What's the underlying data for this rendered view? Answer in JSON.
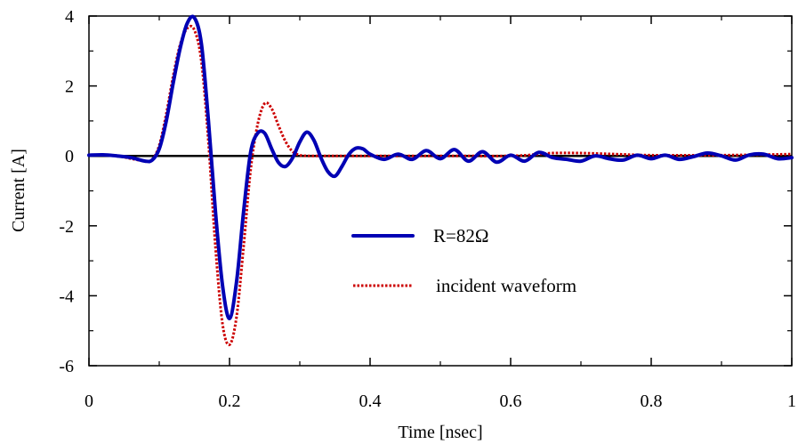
{
  "chart_data": {
    "type": "line",
    "title": "",
    "xlabel": "Time [nsec]",
    "ylabel": "Current [A]",
    "xlim": [
      0,
      1
    ],
    "ylim": [
      -6,
      4
    ],
    "x_ticks": [
      0,
      0.2,
      0.4,
      0.6,
      0.8,
      1
    ],
    "x_tick_labels": [
      "0",
      "0.2",
      "0.4",
      "0.6",
      "0.8",
      "1"
    ],
    "y_ticks": [
      -6,
      -4,
      -2,
      0,
      2,
      4
    ],
    "y_tick_labels": [
      "-6",
      "-4",
      "-2",
      "0",
      "2",
      "4"
    ],
    "grid": false,
    "legend_position": "center-right",
    "zero_line": true,
    "series": [
      {
        "name": "R=82Ω",
        "color": "#0000b4",
        "style": "solid",
        "x": [
          0,
          0.02,
          0.04,
          0.06,
          0.08,
          0.09,
          0.1,
          0.11,
          0.12,
          0.13,
          0.14,
          0.15,
          0.16,
          0.17,
          0.18,
          0.19,
          0.2,
          0.21,
          0.22,
          0.23,
          0.24,
          0.25,
          0.26,
          0.27,
          0.28,
          0.29,
          0.3,
          0.31,
          0.32,
          0.33,
          0.34,
          0.35,
          0.36,
          0.37,
          0.38,
          0.39,
          0.4,
          0.42,
          0.44,
          0.46,
          0.48,
          0.5,
          0.52,
          0.54,
          0.56,
          0.58,
          0.6,
          0.62,
          0.64,
          0.66,
          0.68,
          0.7,
          0.72,
          0.74,
          0.76,
          0.78,
          0.8,
          0.82,
          0.84,
          0.86,
          0.88,
          0.9,
          0.92,
          0.94,
          0.96,
          0.98,
          1.0
        ],
        "y": [
          0.02,
          0.03,
          0.0,
          -0.05,
          -0.15,
          -0.12,
          0.2,
          1.0,
          2.1,
          3.1,
          3.8,
          3.95,
          3.2,
          1.0,
          -1.6,
          -3.7,
          -4.65,
          -3.6,
          -1.6,
          0.1,
          0.65,
          0.65,
          0.2,
          -0.2,
          -0.3,
          -0.05,
          0.4,
          0.68,
          0.45,
          -0.05,
          -0.45,
          -0.58,
          -0.3,
          0.05,
          0.22,
          0.2,
          0.05,
          -0.1,
          0.05,
          -0.1,
          0.15,
          -0.08,
          0.18,
          -0.15,
          0.12,
          -0.18,
          0.02,
          -0.15,
          0.1,
          -0.05,
          -0.1,
          -0.15,
          0.0,
          -0.08,
          -0.12,
          0.02,
          -0.08,
          0.02,
          -0.1,
          -0.02,
          0.08,
          0.0,
          -0.12,
          0.03,
          0.05,
          -0.08,
          -0.05
        ]
      },
      {
        "name": "incident waveform",
        "color": "#cc0000",
        "style": "dotted",
        "x": [
          0,
          0.02,
          0.04,
          0.06,
          0.08,
          0.09,
          0.1,
          0.11,
          0.12,
          0.13,
          0.14,
          0.15,
          0.16,
          0.17,
          0.18,
          0.19,
          0.2,
          0.21,
          0.22,
          0.23,
          0.24,
          0.25,
          0.26,
          0.27,
          0.28,
          0.29,
          0.3,
          0.31,
          0.32,
          0.34,
          0.36,
          0.4,
          0.5,
          0.6,
          0.64,
          0.66,
          0.7,
          0.75,
          0.8,
          0.9,
          1.0
        ],
        "y": [
          0.02,
          0.02,
          0.0,
          -0.08,
          -0.15,
          -0.1,
          0.3,
          1.2,
          2.3,
          3.2,
          3.65,
          3.6,
          2.7,
          0.4,
          -2.6,
          -4.8,
          -5.4,
          -4.6,
          -2.6,
          -0.4,
          0.9,
          1.5,
          1.35,
          0.85,
          0.4,
          0.12,
          0.02,
          0.0,
          0.0,
          0.0,
          0.0,
          0.0,
          0.0,
          0.0,
          0.05,
          0.08,
          0.08,
          0.05,
          0.02,
          0.02,
          0.05
        ]
      }
    ]
  }
}
